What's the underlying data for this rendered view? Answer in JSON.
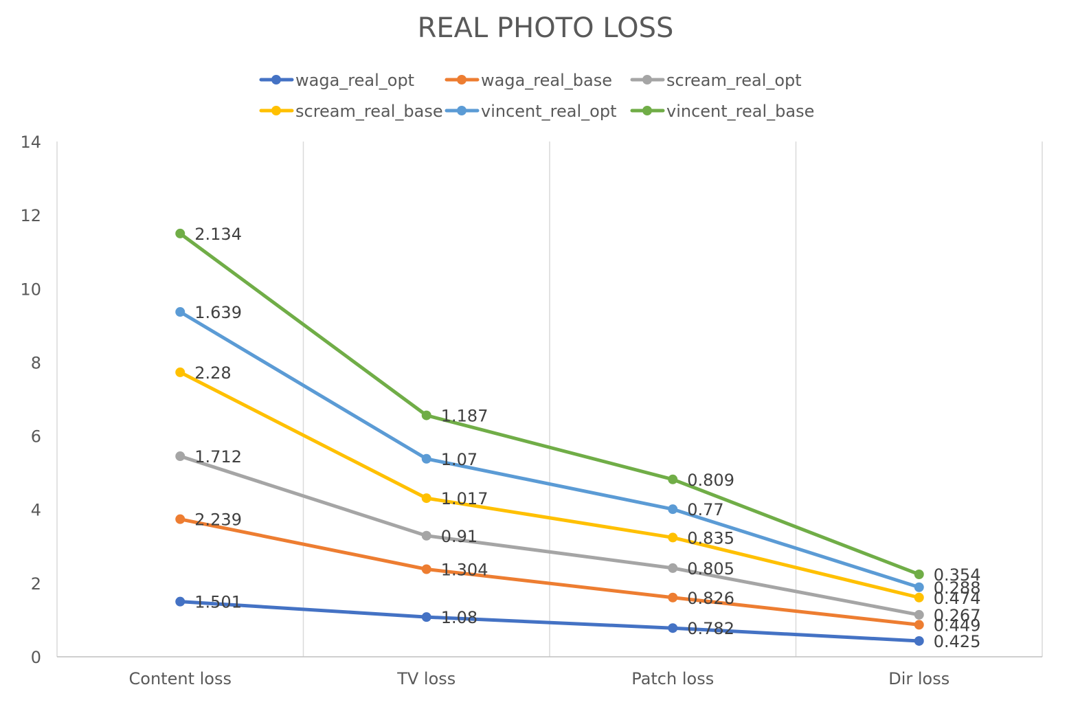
{
  "chart_data": {
    "type": "line",
    "title": "REAL PHOTO LOSS",
    "xlabel": "",
    "ylabel": "",
    "categories": [
      "Content loss",
      "TV loss",
      "Patch loss",
      "Dir loss"
    ],
    "ylim": [
      0,
      14
    ],
    "yticks": [
      "0",
      "2",
      "4",
      "6",
      "8",
      "10",
      "12",
      "14"
    ],
    "grid": "vertical",
    "legend_position": "top",
    "series": [
      {
        "name": "waga_real_opt",
        "color": "#4472C4",
        "values": [
          1.5,
          1.08,
          0.78,
          0.43
        ],
        "labels": [
          "1.501",
          "1.08",
          "0.782",
          "0.425"
        ]
      },
      {
        "name": "waga_real_base",
        "color": "#ED7D31",
        "values": [
          3.74,
          2.38,
          1.61,
          0.87
        ],
        "labels": [
          "2.239",
          "1.304",
          "0.826",
          "0.449"
        ]
      },
      {
        "name": "scream_real_opt",
        "color": "#A5A5A5",
        "values": [
          5.45,
          3.29,
          2.41,
          1.14
        ],
        "labels": [
          "1.712",
          "0.91",
          "0.805",
          "0.267"
        ]
      },
      {
        "name": "scream_real_base",
        "color": "#FFC000",
        "values": [
          7.73,
          4.31,
          3.24,
          1.61
        ],
        "labels": [
          "2.28",
          "1.017",
          "0.835",
          "0.474"
        ]
      },
      {
        "name": "vincent_real_opt",
        "color": "#5B9BD5",
        "values": [
          9.37,
          5.38,
          4.01,
          1.89
        ],
        "labels": [
          "1.639",
          "1.07",
          "0.77",
          "0.288"
        ]
      },
      {
        "name": "vincent_real_base",
        "color": "#70AD47",
        "values": [
          11.5,
          6.56,
          4.82,
          2.24
        ],
        "labels": [
          "2.134",
          "1.187",
          "0.809",
          "0.354"
        ]
      }
    ]
  }
}
